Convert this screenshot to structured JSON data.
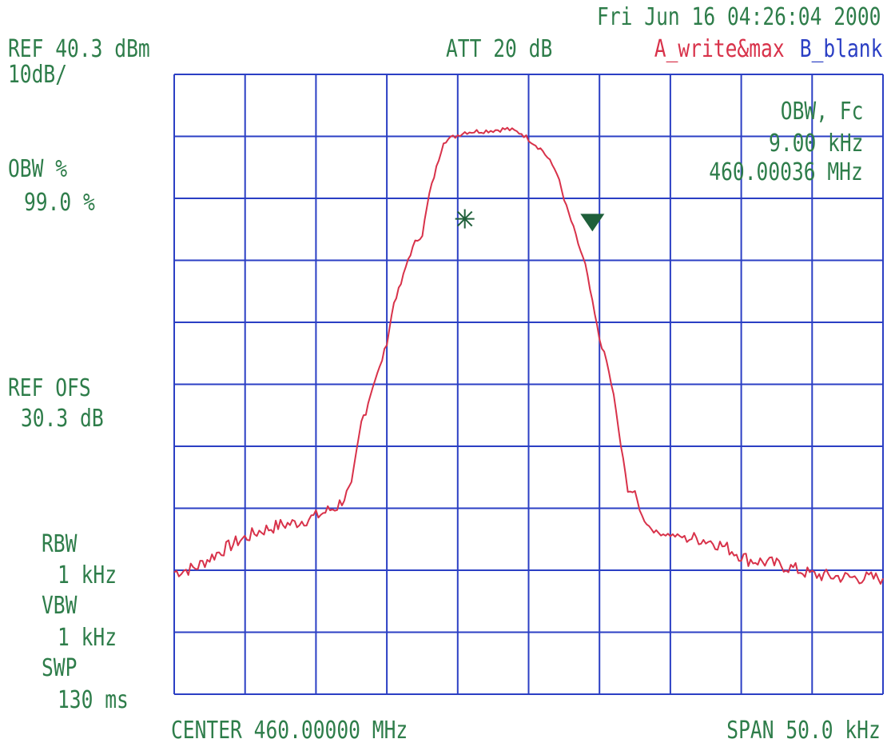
{
  "header": {
    "timestamp": "Fri Jun 16 04:26:04 2000",
    "ref_level": "REF 40.3 dBm",
    "scale": "10dB/",
    "attenuation": "ATT 20 dB",
    "trace_a": "A_write&max",
    "trace_b": "B_blank"
  },
  "left_panel": {
    "obw_pct_label": "OBW %",
    "obw_pct_value": "99.0 %",
    "ref_ofs_label": "REF OFS",
    "ref_ofs_value": "30.3 dB",
    "rbw_label": "RBW",
    "rbw_value": "1 kHz",
    "vbw_label": "VBW",
    "vbw_value": "1 kHz",
    "swp_label": "SWP",
    "swp_value": "130 ms"
  },
  "readout": {
    "label": "OBW, Fc",
    "bandwidth": "9.00 kHz",
    "center": "460.00036 MHz"
  },
  "footer": {
    "center": "CENTER 460.00000 MHz",
    "span": "SPAN 50.0 kHz"
  },
  "colors": {
    "text": "#2e7d4a",
    "grid": "#2b3fc4",
    "trace_a": "#d8324a",
    "trace_b": "#2b3fc4",
    "marker": "#1f5f3a"
  },
  "chart_data": {
    "type": "line",
    "x_unit": "kHz offset from 460.00000 MHz",
    "y_unit": "dBm",
    "xlim": [
      -25,
      25
    ],
    "ylim": [
      -59.7,
      40.3
    ],
    "grid": true,
    "series": [
      {
        "name": "A_write&max",
        "x": [
          -25,
          -23.5,
          -22,
          -20.5,
          -20.2,
          -19,
          -17.5,
          -16.5,
          -15,
          -13.5,
          -12.5,
          -11.8,
          -11,
          -10.5,
          -10,
          -9.5,
          -9,
          -8.5,
          -8,
          -7.5,
          -7,
          -6,
          -4.5,
          -3,
          -1.5,
          -0.5,
          1,
          2,
          2.5,
          3,
          3.5,
          4,
          4.5,
          5,
          5.5,
          6,
          6.5,
          7,
          7.5,
          8,
          8.5,
          9,
          10,
          11,
          12,
          13,
          14,
          15.5,
          17,
          18.5,
          20,
          21.5,
          23,
          25
        ],
        "y": [
          -40,
          -39.3,
          -37,
          -35,
          -34.7,
          -33.4,
          -32.4,
          -32.1,
          -31,
          -29.4,
          -26.5,
          -16,
          -10,
          -7,
          -3,
          3.5,
          6.5,
          10.5,
          13.2,
          14.5,
          21,
          29.5,
          31,
          31.2,
          31.5,
          30.8,
          28,
          24.5,
          20,
          16.7,
          13,
          9.5,
          3.5,
          -2.4,
          -6,
          -11.5,
          -19.5,
          -26.7,
          -27.3,
          -31,
          -32.6,
          -33.6,
          -34,
          -34.4,
          -34.6,
          -35.1,
          -36.1,
          -38,
          -38.5,
          -39.3,
          -40.4,
          -40.7,
          -40.9,
          -41
        ]
      }
    ],
    "markers": [
      {
        "type": "cross",
        "x": -4.5,
        "y": 17
      },
      {
        "type": "triangle-down",
        "x": 4.5,
        "y": 16
      }
    ]
  }
}
